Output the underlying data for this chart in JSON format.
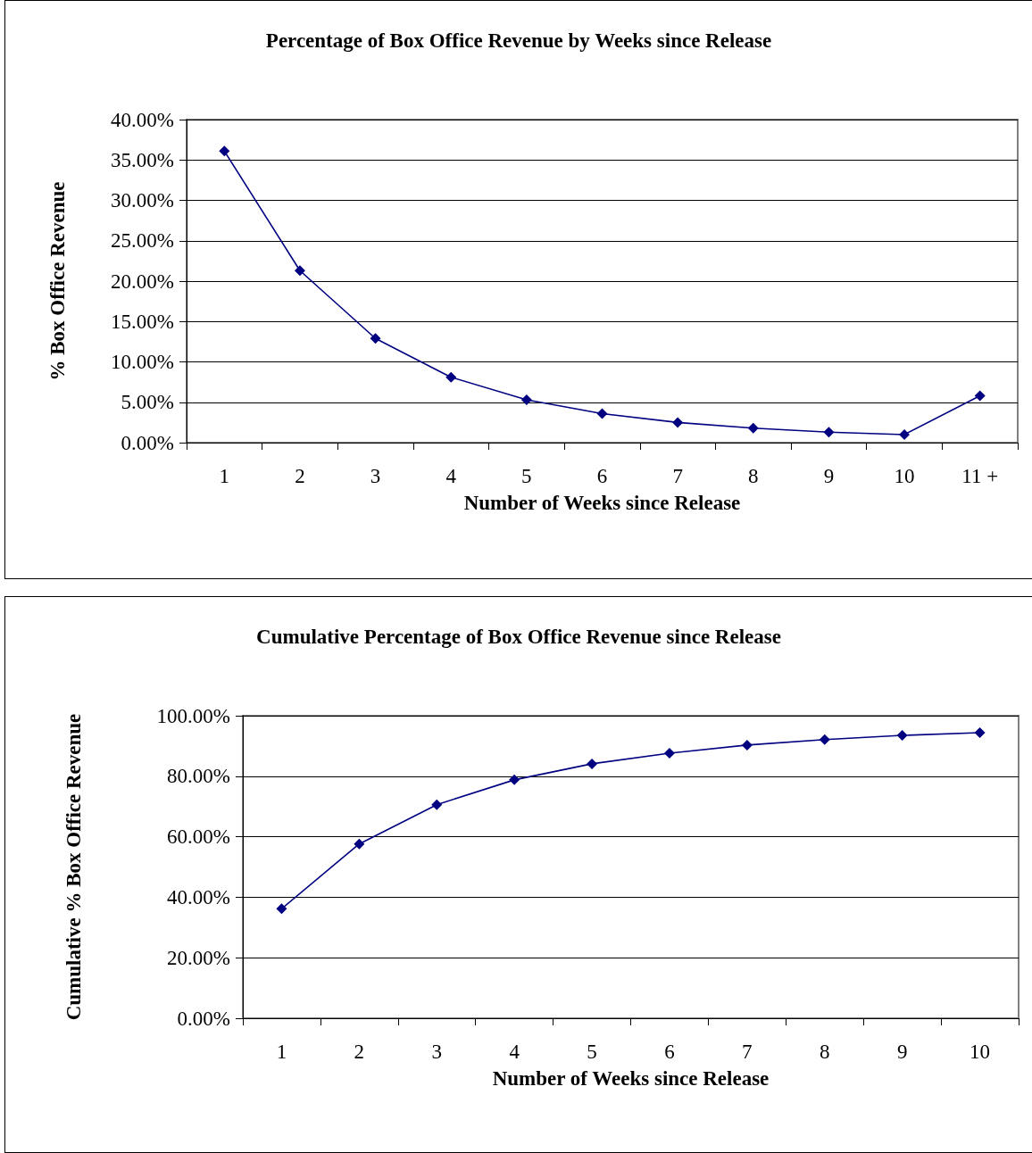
{
  "chart_data": [
    {
      "type": "line",
      "title": "Percentage of Box Office Revenue by Weeks since Release",
      "xlabel": "Number of Weeks since Release",
      "ylabel": "% Box Office Revenue",
      "categories": [
        "1",
        "2",
        "3",
        "4",
        "5",
        "6",
        "7",
        "8",
        "9",
        "10",
        "11 +"
      ],
      "series": [
        {
          "color": "#000080",
          "values": [
            36.1,
            21.3,
            12.9,
            8.1,
            5.3,
            3.6,
            2.5,
            1.8,
            1.3,
            1.0,
            5.8
          ]
        }
      ],
      "ylim": [
        0,
        40
      ],
      "yticks": [
        {
          "value": 0,
          "label": "0.00%"
        },
        {
          "value": 5,
          "label": "5.00%"
        },
        {
          "value": 10,
          "label": "10.00%"
        },
        {
          "value": 15,
          "label": "15.00%"
        },
        {
          "value": 20,
          "label": "20.00%"
        },
        {
          "value": 25,
          "label": "25.00%"
        },
        {
          "value": 30,
          "label": "30.00%"
        },
        {
          "value": 35,
          "label": "35.00%"
        },
        {
          "value": 40,
          "label": "40.00%"
        }
      ],
      "grid": "y",
      "marker": "diamond",
      "line_style": "solid"
    },
    {
      "type": "line",
      "title": "Cumulative Percentage of Box Office Revenue since Release",
      "xlabel": "Number of Weeks since Release",
      "ylabel": "Cumulative % Box Office Revenue",
      "categories": [
        "1",
        "2",
        "3",
        "4",
        "5",
        "6",
        "7",
        "8",
        "9",
        "10"
      ],
      "series": [
        {
          "color": "#000080",
          "values": [
            36.2,
            57.6,
            70.6,
            78.8,
            84.1,
            87.6,
            90.3,
            92.1,
            93.5,
            94.4
          ]
        }
      ],
      "ylim": [
        0,
        100
      ],
      "yticks": [
        {
          "value": 0,
          "label": "0.00%"
        },
        {
          "value": 20,
          "label": "20.00%"
        },
        {
          "value": 40,
          "label": "40.00%"
        },
        {
          "value": 60,
          "label": "60.00%"
        },
        {
          "value": 80,
          "label": "80.00%"
        },
        {
          "value": 100,
          "label": "100.00%"
        }
      ],
      "grid": "y",
      "marker": "diamond",
      "line_style": "solid"
    }
  ]
}
